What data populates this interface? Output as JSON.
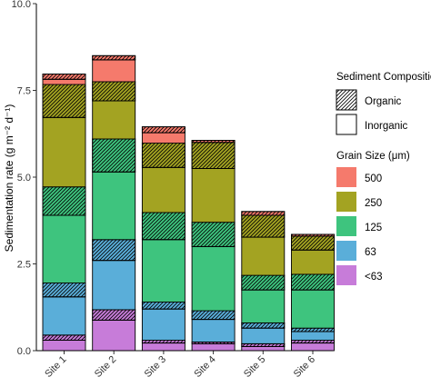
{
  "chart_data": {
    "type": "bar",
    "stacked": true,
    "categories": [
      "Site 1",
      "Site 2",
      "Site 3",
      "Site 4",
      "Site 5",
      "Site 6"
    ],
    "ylabel": "Sedimentation rate (g  m⁻² d⁻¹)",
    "ylim": [
      0,
      10
    ],
    "yticks": [
      "0.0",
      "2.5",
      "5.0",
      "7.5",
      "10.0"
    ],
    "grid": false,
    "series": [
      {
        "name": "<63",
        "color": "#c77cd9",
        "inorganic": [
          0.3,
          0.88,
          0.22,
          0.2,
          0.12,
          0.22
        ],
        "organic": [
          0.15,
          0.3,
          0.08,
          0.05,
          0.08,
          0.08
        ]
      },
      {
        "name": "63",
        "color": "#5aaed9",
        "inorganic": [
          1.1,
          1.42,
          0.9,
          0.65,
          0.45,
          0.25
        ],
        "organic": [
          0.4,
          0.6,
          0.2,
          0.25,
          0.15,
          0.1
        ]
      },
      {
        "name": "125",
        "color": "#3ec47e",
        "inorganic": [
          1.95,
          1.95,
          1.8,
          1.85,
          0.95,
          1.1
        ],
        "organic": [
          0.82,
          0.95,
          0.78,
          0.7,
          0.42,
          0.45
        ]
      },
      {
        "name": "250",
        "color": "#a3a322",
        "inorganic": [
          2.0,
          1.1,
          1.3,
          1.55,
          1.1,
          0.7
        ],
        "organic": [
          0.95,
          0.55,
          0.7,
          0.75,
          0.63,
          0.4
        ]
      },
      {
        "name": "500",
        "color": "#f57a6c",
        "inorganic": [
          0.15,
          0.63,
          0.3,
          0.0,
          0.0,
          0.0
        ],
        "organic": [
          0.15,
          0.12,
          0.17,
          0.06,
          0.11,
          0.05
        ]
      }
    ]
  },
  "legend": {
    "composition_title": "Sediment Composition",
    "composition_items": [
      {
        "label": "Organic",
        "pattern": "hatched"
      },
      {
        "label": "Inorganic",
        "pattern": "plain"
      }
    ],
    "grain_title": "Grain Size (μm)",
    "grain_items": [
      {
        "label": "500",
        "color": "#f57a6c"
      },
      {
        "label": "250",
        "color": "#a3a322"
      },
      {
        "label": "125",
        "color": "#3ec47e"
      },
      {
        "label": "63",
        "color": "#5aaed9"
      },
      {
        "label": "<63",
        "color": "#c77cd9"
      }
    ]
  }
}
